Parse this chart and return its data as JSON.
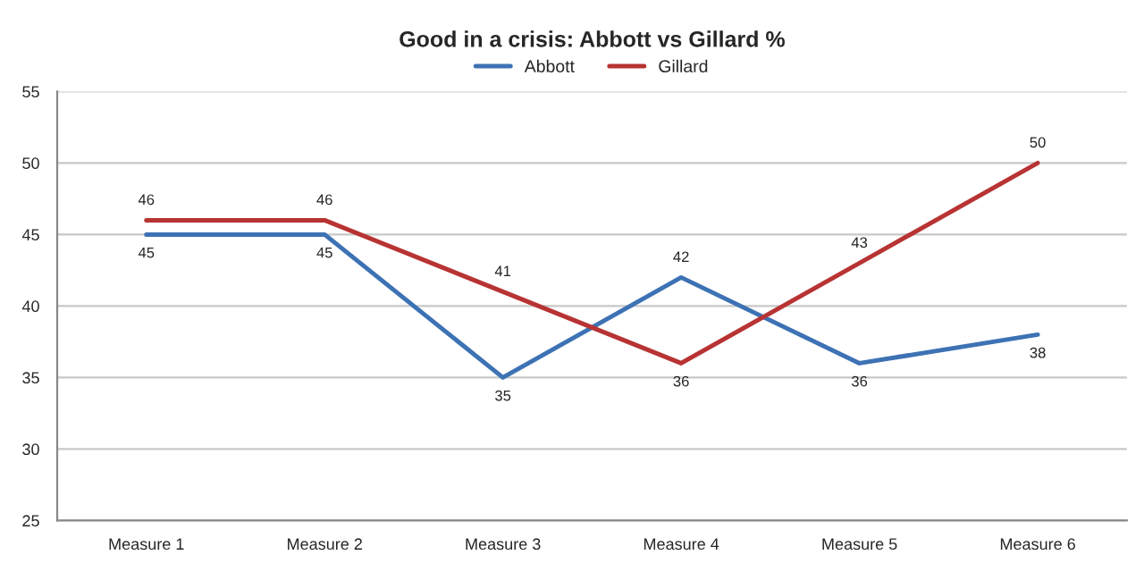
{
  "chart_data": {
    "type": "line",
    "title": "Good in a crisis: Abbott vs Gillard %",
    "categories": [
      "Measure 1",
      "Measure 2",
      "Measure 3",
      "Measure 4",
      "Measure 5",
      "Measure 6"
    ],
    "series": [
      {
        "name": "Abbott",
        "color": "#3d72b4",
        "values": [
          45,
          45,
          35,
          42,
          36,
          38
        ]
      },
      {
        "name": "Gillard",
        "color": "#b83333",
        "values": [
          46,
          46,
          41,
          36,
          43,
          50
        ]
      }
    ],
    "ylim": [
      25,
      55
    ],
    "yticks": [
      25,
      30,
      35,
      40,
      45,
      50,
      55
    ],
    "grid": "y",
    "legend": "top",
    "data_labels": true,
    "marker": "none",
    "line_style": "solid"
  }
}
